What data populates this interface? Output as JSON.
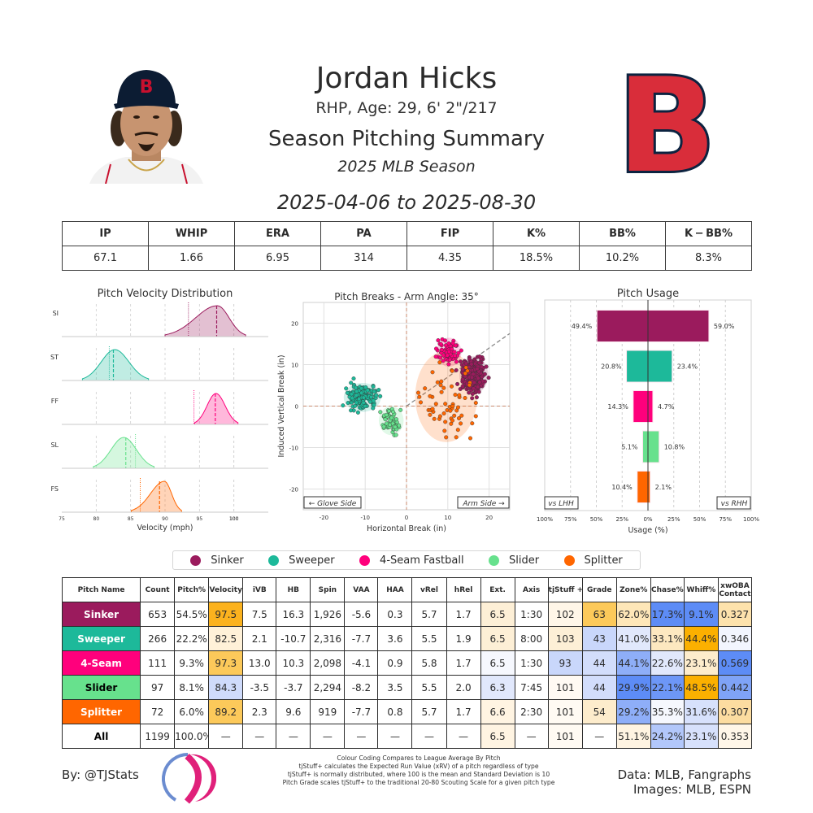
{
  "header": {
    "player_name": "Jordan Hicks",
    "bio": "RHP, Age: 29, 6' 2\"/217",
    "summary_title": "Season Pitching Summary",
    "season_label": "2025 MLB Season",
    "date_range": "2025-04-06 to 2025-08-30",
    "headshot_alt": "player-headshot",
    "team_logo_alt": "Boston Red Sox B logo"
  },
  "summary_stats": {
    "headers": [
      "IP",
      "WHIP",
      "ERA",
      "PA",
      "FIP",
      "K%",
      "BB%",
      "K − BB%"
    ],
    "values": [
      "67.1",
      "1.66",
      "6.95",
      "314",
      "4.35",
      "18.5%",
      "10.2%",
      "8.3%"
    ]
  },
  "colors": {
    "sinker": "#9b1b5d",
    "sweeper": "#1db99a",
    "fourseam": "#ff007c",
    "slider": "#67e18d",
    "splitter": "#ff6600",
    "heat_orange_strong": "#fbb21e",
    "heat_orange_mid": "#fcc95a",
    "heat_orange_light": "#fde4b2",
    "heat_orange_faint": "#fff3de",
    "heat_blue_strong": "#5d8cf6",
    "heat_blue_mid": "#8eaef8",
    "heat_blue_light": "#c9d7fb",
    "heat_blue_faint": "#e4ebfd"
  },
  "chart_data": [
    {
      "type": "area",
      "title": "Pitch Velocity Distribution",
      "xlabel": "Velocity (mph)",
      "ylabel": "",
      "xlim": [
        75,
        105
      ],
      "xticks": [
        75,
        80,
        85,
        90,
        95,
        100
      ],
      "grid": true,
      "series": [
        {
          "name": "SI",
          "color": "#9b1b5d",
          "range": [
            90.0,
            101.7
          ],
          "peak": 97.6,
          "mean": 97.5,
          "league_mean": 93.4
        },
        {
          "name": "ST",
          "color": "#1db99a",
          "range": [
            78.0,
            87.6
          ],
          "peak": 82.7,
          "mean": 82.5,
          "league_mean": 81.9
        },
        {
          "name": "FF",
          "color": "#ff007c",
          "range": [
            94.3,
            100.6
          ],
          "peak": 97.4,
          "mean": 97.3,
          "league_mean": 94.2
        },
        {
          "name": "SL",
          "color": "#67e18d",
          "range": [
            79.6,
            88.4
          ],
          "peak": 84.0,
          "mean": 84.3,
          "league_mean": 85.7
        },
        {
          "name": "FS",
          "color": "#ff6600",
          "range": [
            85.1,
            92.4
          ],
          "peak": 89.9,
          "mean": 89.2,
          "league_mean": 86.4
        }
      ]
    },
    {
      "type": "scatter",
      "title": "Pitch Breaks - Arm Angle: 35°",
      "xlabel": "Horizontal Break (in)",
      "ylabel": "Induced Vertical Break (in)",
      "xlim": [
        -25,
        25
      ],
      "ylim": [
        -25,
        25
      ],
      "xticks": [
        -20,
        -10,
        0,
        10,
        20
      ],
      "yticks": [
        -20,
        -10,
        0,
        10,
        20
      ],
      "grid": true,
      "arm_angle_deg": 35,
      "annotations": [
        "← Glove Side",
        "Arm Side →"
      ],
      "series": [
        {
          "name": "Sinker",
          "color": "#9b1b5d",
          "center": [
            16.3,
            7.5
          ],
          "ellipse": {
            "rx": 3.5,
            "ry": 4.5
          }
        },
        {
          "name": "Sweeper",
          "color": "#1db99a",
          "center": [
            -10.7,
            2.1
          ],
          "ellipse": {
            "rx": 4.5,
            "ry": 3.5
          }
        },
        {
          "name": "4-Seam Fastball",
          "color": "#ff007c",
          "center": [
            10.3,
            13.0
          ],
          "ellipse": {
            "rx": 3,
            "ry": 3.5
          }
        },
        {
          "name": "Slider",
          "color": "#67e18d",
          "center": [
            -3.7,
            -3.5
          ],
          "ellipse": {
            "rx": 3,
            "ry": 3.5
          }
        },
        {
          "name": "Splitter",
          "color": "#ff6600",
          "center": [
            9.6,
            2.3
          ],
          "ellipse": {
            "rx": 7.5,
            "ry": 11
          }
        }
      ]
    },
    {
      "type": "bar",
      "title": "Pitch Usage",
      "xlabel": "Usage (%)",
      "xticks": [
        "100%",
        "75%",
        "50%",
        "25%",
        "0%",
        "25%",
        "50%",
        "75%",
        "100%"
      ],
      "xlim": [
        -100,
        100
      ],
      "grid": true,
      "annotations": [
        "vs LHH",
        "vs RHH"
      ],
      "categories": [
        "Sinker",
        "Sweeper",
        "4-Seam Fastball",
        "Slider",
        "Splitter"
      ],
      "series": [
        {
          "name": "vs LHH",
          "values": [
            49.4,
            20.8,
            14.3,
            5.1,
            10.4
          ]
        },
        {
          "name": "vs RHH",
          "values": [
            59.0,
            23.4,
            4.7,
            10.8,
            2.1
          ]
        }
      ],
      "colors": [
        "#9b1b5d",
        "#1db99a",
        "#ff007c",
        "#67e18d",
        "#ff6600"
      ]
    },
    {
      "type": "table",
      "title": "Pitch Metrics",
      "columns": [
        "Pitch Name",
        "Count",
        "Pitch%",
        "Velocity",
        "iVB",
        "HB",
        "Spin",
        "VAA",
        "HAA",
        "vRel",
        "hRel",
        "Ext.",
        "Axis",
        "tjStuff+",
        "Grade",
        "Zone%",
        "Chase%",
        "Whiff%",
        "xwOBA Contact"
      ],
      "rows": [
        [
          "Sinker",
          "653",
          "54.5%",
          "97.5",
          "7.5",
          "16.3",
          "1,926",
          "-5.6",
          "0.3",
          "5.7",
          "1.7",
          "6.5",
          "1:30",
          "102",
          "63",
          "62.0%",
          "17.3%",
          "9.1%",
          "0.327"
        ],
        [
          "Sweeper",
          "266",
          "22.2%",
          "82.5",
          "2.1",
          "-10.7",
          "2,316",
          "-7.7",
          "3.6",
          "5.5",
          "1.9",
          "6.5",
          "8:00",
          "103",
          "43",
          "41.0%",
          "33.1%",
          "44.4%",
          "0.346"
        ],
        [
          "4-Seam",
          "111",
          "9.3%",
          "97.3",
          "13.0",
          "10.3",
          "2,098",
          "-4.1",
          "0.9",
          "5.8",
          "1.7",
          "6.5",
          "1:30",
          "93",
          "44",
          "44.1%",
          "22.6%",
          "23.1%",
          "0.569"
        ],
        [
          "Slider",
          "97",
          "8.1%",
          "84.3",
          "-3.5",
          "-3.7",
          "2,294",
          "-8.2",
          "3.5",
          "5.5",
          "2.0",
          "6.3",
          "7:45",
          "101",
          "44",
          "29.9%",
          "22.1%",
          "48.5%",
          "0.442"
        ],
        [
          "Splitter",
          "72",
          "6.0%",
          "89.2",
          "2.3",
          "9.6",
          "919",
          "-7.7",
          "0.8",
          "5.7",
          "1.7",
          "6.6",
          "2:30",
          "101",
          "54",
          "29.2%",
          "35.3%",
          "31.6%",
          "0.307"
        ],
        [
          "All",
          "1199",
          "100.0%",
          "—",
          "—",
          "—",
          "—",
          "—",
          "—",
          "—",
          "—",
          "6.5",
          "—",
          "101",
          "—",
          "51.1%",
          "24.2%",
          "23.1%",
          "0.353"
        ]
      ]
    }
  ],
  "legend": {
    "items": [
      {
        "label": "Sinker",
        "color": "#9b1b5d"
      },
      {
        "label": "Sweeper",
        "color": "#1db99a"
      },
      {
        "label": "4-Seam Fastball",
        "color": "#ff007c"
      },
      {
        "label": "Slider",
        "color": "#67e18d"
      },
      {
        "label": "Splitter",
        "color": "#ff6600"
      }
    ]
  },
  "pitch_table": {
    "headers": [
      "Pitch Name",
      "Count",
      "Pitch%",
      "Velocity",
      "iVB",
      "HB",
      "Spin",
      "VAA",
      "HAA",
      "vRel",
      "hRel",
      "Ext.",
      "Axis",
      "tjStuff +",
      "Grade",
      "Zone%",
      "Chase%",
      "Whiff%",
      "xwOBA\nContact"
    ],
    "name_colors": [
      "#9b1b5d",
      "#1db99a",
      "#ff007c",
      "#67e18d",
      "#ff6600",
      "#ffffff"
    ],
    "name_text_colors": [
      "#ffffff",
      "#ffffff",
      "#ffffff",
      "#000000",
      "#ffffff",
      "#000000"
    ],
    "cell_colors": [
      [
        "",
        "",
        "",
        "#fbb21e",
        "",
        "",
        "",
        "",
        "",
        "",
        "",
        "#fdefd6",
        "",
        "#fff6e8",
        "#fcc95a",
        "#fde6b8",
        "#5d8cf6",
        "#5d8cf6",
        "#fde2ac"
      ],
      [
        "",
        "",
        "",
        "#fff1d8",
        "",
        "",
        "",
        "",
        "",
        "",
        "",
        "#fdefd6",
        "",
        "#fdefd6",
        "#c9d7fb",
        "#e1e8fc",
        "#fde8c0",
        "#fbb000",
        "#f2f5fe"
      ],
      [
        "",
        "",
        "",
        "#fcc95a",
        "",
        "",
        "",
        "",
        "",
        "",
        "",
        "#f6f8fe",
        "",
        "#c9d7fb",
        "#d2ddfb",
        "#8eaef8",
        "#e1e8fc",
        "#fdeccc",
        "#5d8cf6"
      ],
      [
        "",
        "",
        "",
        "#cfdbfb",
        "",
        "",
        "",
        "",
        "",
        "",
        "",
        "#e1e8fc",
        "",
        "#fffaf3",
        "#d2ddfb",
        "#5d8cf6",
        "#6d97f7",
        "#fbb000",
        "#7fa3f7"
      ],
      [
        "",
        "",
        "",
        "#fcc95a",
        "",
        "",
        "",
        "",
        "",
        "",
        "",
        "#fff4e2",
        "",
        "#fffaf3",
        "#fdeccc",
        "#8eaef8",
        "#f6f8fe",
        "#d7e1fc",
        "#fcdca0"
      ],
      [
        "",
        "",
        "",
        "",
        "",
        "",
        "",
        "",
        "",
        "",
        "",
        "#fff4e2",
        "",
        "#fffaf3",
        "",
        "#fff4e2",
        "#b2c7fa",
        "#d7e1fc",
        "#fff6e8"
      ]
    ]
  },
  "footer": {
    "byline": "By: @TJStats",
    "notes": [
      "Colour Coding Compares to League Average By Pitch",
      "tjStuff+ calculates the Expected Run Value (xRV) of a pitch regardless of type",
      "tjStuff+ is normally distributed, where 100 is the mean and Standard Deviation is 10",
      "Pitch Grade scales tjStuff+ to the traditional 20-80 Scouting Scale for a given pitch type"
    ],
    "credits_line1": "Data: MLB, Fangraphs",
    "credits_line2": "Images: MLB, ESPN"
  }
}
